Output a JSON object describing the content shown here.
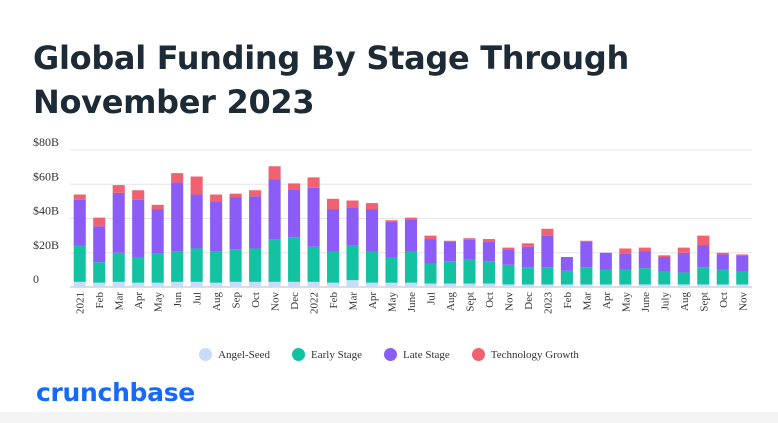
{
  "chart_data": {
    "type": "bar",
    "stacked": true,
    "title": "Global Funding By Stage Through November 2023",
    "xlabel": "",
    "ylabel": "",
    "ylim": [
      0,
      80
    ],
    "y_ticks": [
      {
        "value": 0,
        "label": "0"
      },
      {
        "value": 20,
        "label": "$20B"
      },
      {
        "value": 40,
        "label": "$40B"
      },
      {
        "value": 60,
        "label": "$60B"
      },
      {
        "value": 80,
        "label": "$80B"
      }
    ],
    "grid": true,
    "legend_position": "bottom",
    "categories": [
      "2021",
      "Feb",
      "Mar",
      "Apr",
      "May",
      "Jun",
      "Jul",
      "Aug",
      "Sep",
      "Oct",
      "Nov",
      "Dec",
      "2022",
      "Feb",
      "Mar",
      "Apr",
      "May",
      "June",
      "Jul",
      "Aug",
      "Sept",
      "Oct",
      "Nov",
      "Dec",
      "2023",
      "Feb",
      "Mar",
      "Apr",
      "May",
      "June",
      "July",
      "Aug",
      "Sept",
      "Oct",
      "Nov"
    ],
    "series": [
      {
        "name": "Angel-Seed",
        "color": "#c9dcf7",
        "values": [
          3,
          2.5,
          3,
          2.5,
          2.5,
          3,
          3,
          2.5,
          3,
          3,
          3,
          3,
          3,
          2.5,
          4,
          2.5,
          2.5,
          2.5,
          2,
          2,
          2,
          2,
          1.5,
          1.5,
          1.5,
          1.5,
          1.5,
          1.5,
          1.5,
          1.5,
          1.5,
          1.5,
          1.5,
          1.5,
          1.5
        ]
      },
      {
        "name": "Early Stage",
        "color": "#13c2a0",
        "values": [
          21,
          12,
          17,
          14.5,
          17,
          18,
          19.5,
          18.5,
          19,
          19.5,
          25,
          26,
          20.5,
          18,
          20.5,
          18,
          14.5,
          18,
          11.5,
          13,
          14,
          13,
          11.5,
          10,
          10,
          8,
          10,
          8.5,
          8.5,
          9.5,
          7.5,
          7,
          10,
          8.5,
          7.5
        ]
      },
      {
        "name": "Late Stage",
        "color": "#8b5cf6",
        "values": [
          27,
          21,
          35,
          34,
          26,
          40,
          31.5,
          29,
          30.5,
          30.5,
          35,
          28,
          34.5,
          25,
          22,
          25,
          21,
          19,
          14.5,
          11.5,
          11.5,
          11.5,
          9,
          12,
          18.5,
          8,
          15,
          10,
          9.5,
          10,
          8.5,
          11.5,
          13,
          9,
          9.5
        ]
      },
      {
        "name": "Technology Growth",
        "color": "#f06270",
        "values": [
          3,
          5,
          4.5,
          5.5,
          2.5,
          5.5,
          10.5,
          4,
          2,
          3.5,
          7.5,
          3.5,
          6,
          6,
          4,
          3.5,
          1,
          1,
          2,
          0.5,
          1,
          1.5,
          1,
          2,
          4,
          0,
          0.5,
          0,
          3,
          2,
          1,
          3,
          5.5,
          1,
          0.5
        ]
      }
    ]
  },
  "brand": {
    "name": "crunchbase"
  }
}
